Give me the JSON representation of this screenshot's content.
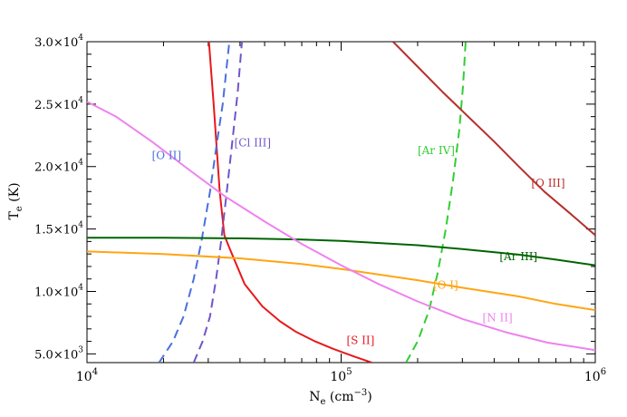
{
  "chart_data": {
    "type": "line",
    "xlabel": "N",
    "xlabel_sub": "e",
    "xlabel_units": " (cm",
    "xlabel_units_sup": "−3",
    "xlabel_units_close": ")",
    "ylabel": "T",
    "ylabel_sub": "e",
    "ylabel_units": " (K)",
    "x_scale": "log",
    "xlim": [
      10000,
      1000000
    ],
    "ylim": [
      4300,
      30000
    ],
    "grid": false,
    "x_ticks": [
      {
        "value": 10000,
        "base": "10",
        "exp": "4"
      },
      {
        "value": 100000,
        "base": "10",
        "exp": "5"
      },
      {
        "value": 1000000,
        "base": "10",
        "exp": "6"
      }
    ],
    "y_ticks": [
      {
        "value": 5000,
        "mant": "5.0×10",
        "exp": "3"
      },
      {
        "value": 10000,
        "mant": "1.0×10",
        "exp": "4"
      },
      {
        "value": 15000,
        "mant": "1.5×10",
        "exp": "4"
      },
      {
        "value": 20000,
        "mant": "2.0×10",
        "exp": "4"
      },
      {
        "value": 25000,
        "mant": "2.5×10",
        "exp": "4"
      },
      {
        "value": 30000,
        "mant": "3.0×10",
        "exp": "4"
      }
    ],
    "series": [
      {
        "name": "[S II]",
        "color": "#e8181c",
        "dash": false,
        "label_at": [
          105000,
          5800
        ],
        "x": [
          30200,
          31500,
          33300,
          34700,
          36300,
          41700,
          49000,
          57500,
          66000,
          79000,
          93000,
          112000,
          132000
        ],
        "y": [
          30000,
          25000,
          18000,
          14500,
          13500,
          10600,
          8800,
          7600,
          6800,
          6000,
          5400,
          4800,
          4300
        ]
      },
      {
        "name": "[O II]",
        "color": "#4a6fe0",
        "dash": true,
        "label_at": [
          18000,
          20600
        ],
        "x": [
          19200,
          21800,
          24000,
          26300,
          28200,
          30500,
          32500,
          34200,
          36300
        ],
        "y": [
          4300,
          6000,
          8000,
          11000,
          14000,
          18000,
          22000,
          25000,
          30000
        ]
      },
      {
        "name": "[Cl III]",
        "color": "#7055c8",
        "dash": true,
        "label_at": [
          38000,
          21600
        ],
        "x": [
          26300,
          28500,
          30500,
          32200,
          33700,
          35500,
          37300,
          39200,
          40700
        ],
        "y": [
          4300,
          6000,
          8000,
          11000,
          14000,
          18000,
          22000,
          26000,
          30000
        ]
      },
      {
        "name": "[Ar IV]",
        "color": "#33cc33",
        "dash": true,
        "label_at": [
          200000,
          21000
        ],
        "x": [
          180000,
          200000,
          222000,
          240000,
          258000,
          276000,
          292000,
          302000,
          309000
        ],
        "y": [
          4300,
          6000,
          8500,
          11500,
          15000,
          19000,
          23000,
          26500,
          30000
        ]
      },
      {
        "name": "[O III]",
        "color": "#b5302b",
        "dash": false,
        "label_at": [
          560000,
          18400
        ],
        "x": [
          160000,
          200000,
          250000,
          316000,
          400000,
          500000,
          630000,
          790000,
          1000000
        ],
        "y": [
          30000,
          28000,
          26000,
          24000,
          22000,
          20000,
          18000,
          16300,
          14500
        ]
      },
      {
        "name": "[Ar III]",
        "color": "#006400",
        "dash": false,
        "label_at": [
          420000,
          12500
        ],
        "x": [
          10000,
          20000,
          40000,
          70000,
          100000,
          200000,
          300000,
          500000,
          700000,
          1000000
        ],
        "y": [
          14300,
          14300,
          14250,
          14150,
          14050,
          13700,
          13400,
          12950,
          12550,
          12100
        ]
      },
      {
        "name": "[O I]",
        "color": "#ffa514",
        "dash": false,
        "label_at": [
          230000,
          10200
        ],
        "x": [
          10000,
          20000,
          40000,
          70000,
          100000,
          200000,
          300000,
          500000,
          700000,
          1000000
        ],
        "y": [
          13200,
          13000,
          12650,
          12200,
          11800,
          10900,
          10300,
          9600,
          9000,
          8500
        ]
      },
      {
        "name": "[N II]",
        "color": "#ee82ee",
        "dash": false,
        "label_at": [
          360000,
          7600
        ],
        "x": [
          10000,
          13000,
          18000,
          25000,
          35000,
          50000,
          70000,
          100000,
          140000,
          200000,
          300000,
          450000,
          650000,
          1000000
        ],
        "y": [
          25200,
          24000,
          22000,
          19800,
          17600,
          15600,
          13800,
          12100,
          10600,
          9200,
          7800,
          6700,
          5900,
          5300
        ]
      }
    ]
  }
}
